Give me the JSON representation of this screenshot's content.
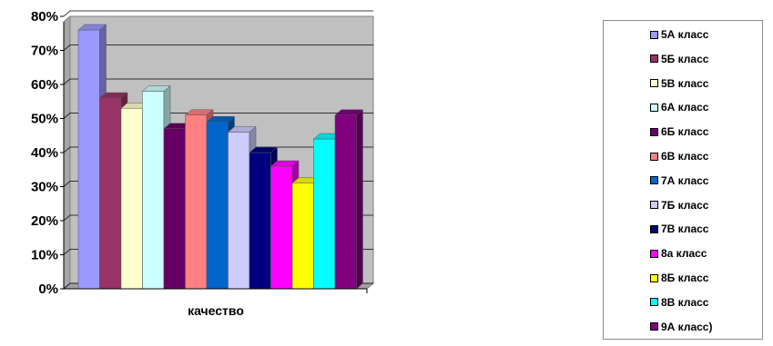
{
  "chart_data": {
    "type": "bar",
    "categories": [
      "качество"
    ],
    "series": [
      {
        "name": "5А класс",
        "values": [
          0.76
        ],
        "color": "#9999FF"
      },
      {
        "name": "5Б класс",
        "values": [
          0.56
        ],
        "color": "#993366"
      },
      {
        "name": "5В класс",
        "values": [
          0.53
        ],
        "color": "#FFFFCC"
      },
      {
        "name": "6А класс",
        "values": [
          0.58
        ],
        "color": "#CCFFFF"
      },
      {
        "name": "6Б класс",
        "values": [
          0.47
        ],
        "color": "#660066"
      },
      {
        "name": "6В класс",
        "values": [
          0.51
        ],
        "color": "#FF8080"
      },
      {
        "name": "7А класс",
        "values": [
          0.49
        ],
        "color": "#0066CC"
      },
      {
        "name": "7Б класс",
        "values": [
          0.46
        ],
        "color": "#CCCCFF"
      },
      {
        "name": "7В класс",
        "values": [
          0.4
        ],
        "color": "#000080"
      },
      {
        "name": "8а класс",
        "values": [
          0.36
        ],
        "color": "#FF00FF"
      },
      {
        "name": "8Б класс",
        "values": [
          0.31
        ],
        "color": "#FFFF00"
      },
      {
        "name": "8В класс",
        "values": [
          0.44
        ],
        "color": "#00FFFF"
      },
      {
        "name": "9А класс)",
        "values": [
          0.51
        ],
        "color": "#800080"
      }
    ],
    "ylim": [
      0,
      0.8
    ],
    "yticks": [
      "0%",
      "10%",
      "20%",
      "30%",
      "40%",
      "50%",
      "60%",
      "70%",
      "80%"
    ],
    "grid": true,
    "legend_position": "right",
    "plot_background": "#C0C0C0"
  }
}
